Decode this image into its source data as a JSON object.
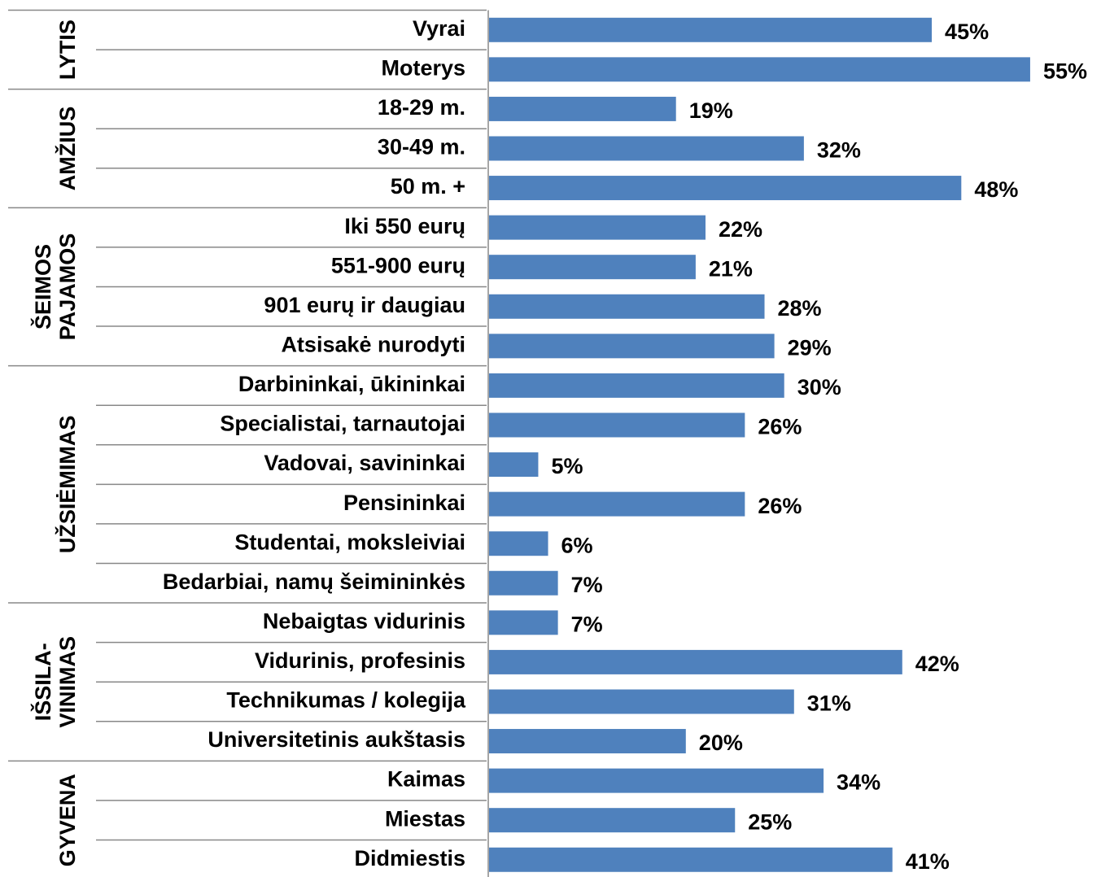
{
  "chart_data": {
    "type": "bar",
    "color": "#4f81bd",
    "xlim": [
      0,
      60
    ],
    "groups": [
      {
        "name": [
          "LYTIS"
        ],
        "categories": [
          "Vyrai",
          "Moterys"
        ],
        "values": [
          45,
          55
        ],
        "value_labels": [
          "45%",
          "55%"
        ]
      },
      {
        "name": [
          "AMŽIUS"
        ],
        "categories": [
          "18-29 m.",
          "30-49 m.",
          "50 m. +"
        ],
        "values": [
          19,
          32,
          48
        ],
        "value_labels": [
          "19%",
          "32%",
          "48%"
        ]
      },
      {
        "name": [
          "ŠEIMOS",
          "PAJAMOS"
        ],
        "categories": [
          "Iki 550 eurų",
          "551-900 eurų",
          "901 eurų ir daugiau",
          "Atsisakė nurodyti"
        ],
        "values": [
          22,
          21,
          28,
          29
        ],
        "value_labels": [
          "22%",
          "21%",
          "28%",
          "29%"
        ]
      },
      {
        "name": [
          "UŽSIĖMIMAS"
        ],
        "categories": [
          "Darbininkai, ūkininkai",
          "Specialistai, tarnautojai",
          "Vadovai, savininkai",
          "Pensininkai",
          "Studentai, moksleiviai",
          "Bedarbiai, namų šeimininkės"
        ],
        "values": [
          30,
          26,
          5,
          26,
          6,
          7
        ],
        "value_labels": [
          "30%",
          "26%",
          "5%",
          "26%",
          "6%",
          "7%"
        ]
      },
      {
        "name": [
          "IŠSILA-",
          "VINIMAS"
        ],
        "categories": [
          "Nebaigtas vidurinis",
          "Vidurinis, profesinis",
          "Technikumas / kolegija",
          "Universitetinis aukštasis"
        ],
        "values": [
          7,
          42,
          31,
          20
        ],
        "value_labels": [
          "7%",
          "42%",
          "31%",
          "20%"
        ]
      },
      {
        "name": [
          "GYVENA"
        ],
        "categories": [
          "Kaimas",
          "Miestas",
          "Didmiestis"
        ],
        "values": [
          34,
          25,
          41
        ],
        "value_labels": [
          "34%",
          "25%",
          "41%"
        ]
      }
    ]
  }
}
